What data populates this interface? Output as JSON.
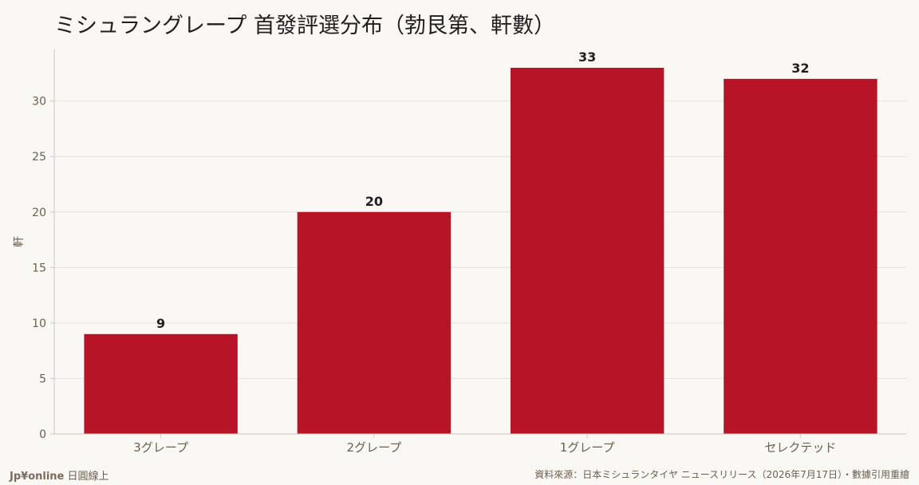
{
  "chart_data": {
    "type": "bar",
    "title": "ミシュラングレープ 首發評選分布（勃艮第、軒數）",
    "xlabel": "",
    "ylabel": "軒",
    "categories": [
      "3グレープ",
      "2グレープ",
      "1グレープ",
      "セレクテッド"
    ],
    "values": [
      9,
      20,
      33,
      32
    ],
    "ylim": [
      0,
      34.65
    ],
    "yticks": [
      0,
      5,
      10,
      15,
      20,
      25,
      30
    ],
    "grid": true,
    "bar_color": "#b81428"
  },
  "footer": {
    "brand": "Jp¥online",
    "brand_suffix": "日圓線上",
    "source": "資料來源：日本ミシュランタイヤ ニュースリリース（2026年7月17日）・數據引用重繪"
  }
}
